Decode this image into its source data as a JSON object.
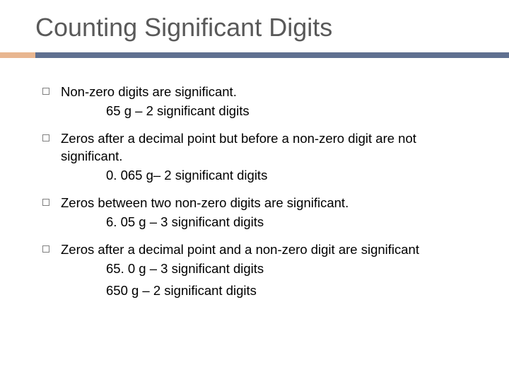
{
  "slide": {
    "title": "Counting Significant Digits",
    "colors": {
      "title_text": "#595959",
      "body_text": "#000000",
      "accent_bar": "#e8b690",
      "main_bar": "#5f7090",
      "bullet_border": "#7f7f7f",
      "background": "#ffffff"
    },
    "typography": {
      "title_fontsize": 36,
      "body_fontsize": 18.5
    },
    "bullets": [
      {
        "text": "Non-zero digits are significant.",
        "examples": [
          "65 g – 2 significant digits"
        ]
      },
      {
        "text": "Zeros after a decimal point but before a non-zero digit are not significant.",
        "examples": [
          "0. 065 g– 2 significant digits"
        ]
      },
      {
        "text": "Zeros between two non-zero digits are significant.",
        "examples": [
          "6. 05 g – 3 significant digits"
        ]
      },
      {
        "text": "Zeros after a decimal point and a non-zero digit are significant",
        "examples": [
          "65. 0 g – 3 significant digits",
          "650 g – 2 significant digits"
        ]
      }
    ]
  }
}
